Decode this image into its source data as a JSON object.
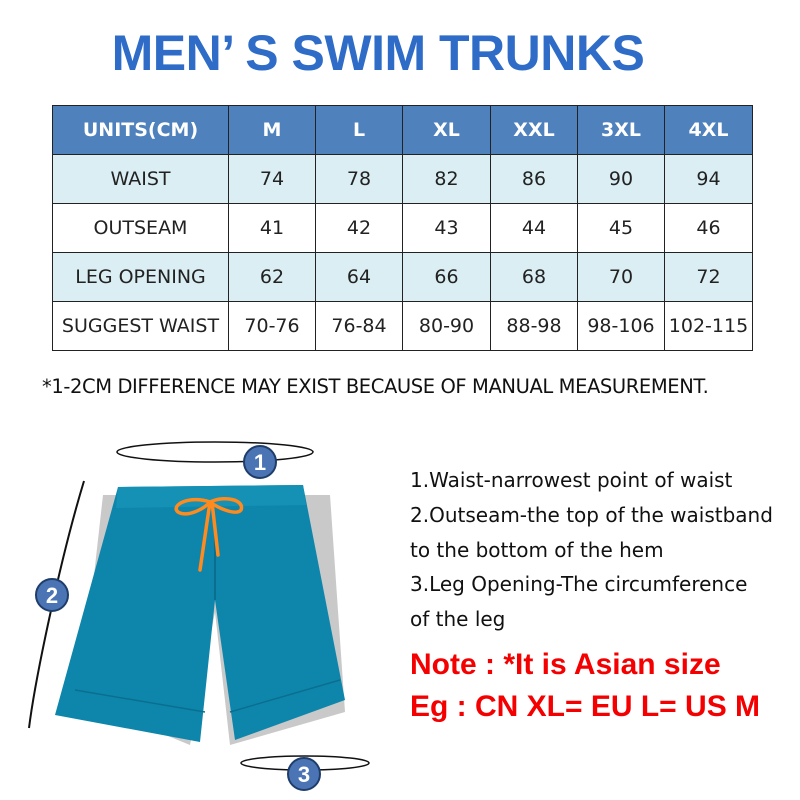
{
  "title": "MEN’ S SWIM TRUNKS",
  "table": {
    "headers": [
      "UNITS(CM)",
      "M",
      "L",
      "XL",
      "XXL",
      "3XL",
      "4XL"
    ],
    "rows": [
      [
        "WAIST",
        "74",
        "78",
        "82",
        "86",
        "90",
        "94"
      ],
      [
        "OUTSEAM",
        "41",
        "42",
        "43",
        "44",
        "45",
        "46"
      ],
      [
        "LEG OPENING",
        "62",
        "64",
        "66",
        "68",
        "70",
        "72"
      ],
      [
        "SUGGEST WAIST",
        "70-76",
        "76-84",
        "80-90",
        "88-98",
        "98-106",
        "102-115"
      ]
    ]
  },
  "footnote": "*1-2CM DIFFERENCE MAY EXIST BECAUSE OF MANUAL MEASUREMENT.",
  "markers": [
    "1",
    "2",
    "3"
  ],
  "descriptions": [
    "1.Waist-narrowest point of waist",
    "2.Outseam-the top of the waistband",
    "to the bottom of the hem",
    "3.Leg Opening-The circumference",
    "of the leg"
  ],
  "notes": [
    "Note : *It is Asian size",
    "Eg : CN XL= EU L= US M"
  ],
  "colors": {
    "title": "#2e6cc7",
    "header": "#4f81bd",
    "alt_row": "#daeef3",
    "note": "#f40000",
    "shorts": "#0e86ab",
    "drawstring": "#ff8a1e",
    "marker": "#4a74b3"
  }
}
